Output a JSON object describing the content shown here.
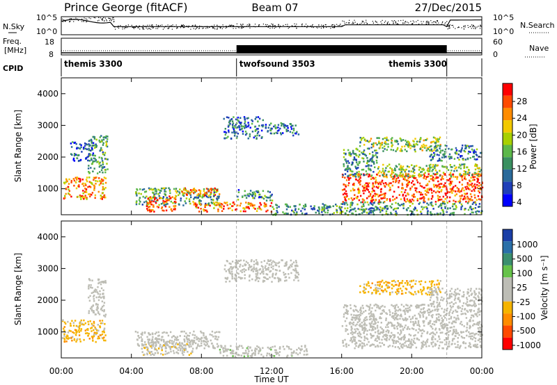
{
  "header": {
    "station": "Prince George (fitACF)",
    "beam": "Beam 07",
    "date": "27/Dec/2015"
  },
  "top_panels": {
    "noise": {
      "left_label": "N.Sky",
      "right_label": "N.Search",
      "left_ticks": [
        "10^5",
        "10^0"
      ],
      "right_ticks": [
        "10^5",
        "10^0"
      ]
    },
    "freq_nave": {
      "left_label_1": "Freq.",
      "left_label_2": "[MHz]",
      "right_label": "Nave",
      "left_ticks": [
        "18",
        "8"
      ],
      "right_ticks": [
        "60",
        "0"
      ]
    },
    "cpid": {
      "label": "CPID",
      "segments": [
        {
          "name": "themis 3300",
          "start_h": 0,
          "end_h": 10
        },
        {
          "name": "twofsound 3503",
          "start_h": 10,
          "end_h": 22
        },
        {
          "name": "themis 3300",
          "start_h": 22,
          "end_h": 24
        }
      ]
    }
  },
  "power_colorbar": {
    "label": "Power [dB]",
    "ticks": [
      "28",
      "24",
      "20",
      "16",
      "12",
      "8",
      "4"
    ],
    "colors": [
      "#ff0000",
      "#ff4a00",
      "#ff8c00",
      "#f2c900",
      "#a8d000",
      "#5cb84a",
      "#3a9060",
      "#2a6a9a",
      "#1f3fb8",
      "#0000ff"
    ]
  },
  "velocity_colorbar": {
    "label": "Velocity [m s⁻¹]",
    "ticks": [
      "1000",
      "500",
      "100",
      "25",
      "-25",
      "-100",
      "-500",
      "-1000"
    ],
    "colors": [
      "#1a3ea6",
      "#2a6fa8",
      "#3b8f6e",
      "#66c24a",
      "#bdbdb5",
      "#bdbdb5",
      "#f5b400",
      "#ff8c00",
      "#ff4a00",
      "#ff0000"
    ]
  },
  "chart_data": [
    {
      "type": "heatmap",
      "title": "Power [dB]",
      "ylabel": "Slant Range [km]",
      "xlabel": "Time UT",
      "x_ticks": [
        "00:00",
        "04:00",
        "08:00",
        "12:00",
        "16:00",
        "20:00",
        "00:00"
      ],
      "y_ticks": [
        1000,
        2000,
        3000,
        4000
      ],
      "xlim": [
        0,
        24
      ],
      "ylim": [
        180,
        4500
      ],
      "clim": [
        0,
        30
      ],
      "markers_h": [
        10,
        22
      ],
      "regions": [
        {
          "t0": 0.1,
          "t1": 2.5,
          "r0": 700,
          "r1": 1400,
          "v": 22
        },
        {
          "t0": 1.5,
          "t1": 2.6,
          "r0": 1500,
          "r1": 2700,
          "v": 12
        },
        {
          "t0": 0.5,
          "t1": 1.8,
          "r0": 1900,
          "r1": 2500,
          "v": 6
        },
        {
          "t0": 4.2,
          "t1": 9.0,
          "r0": 500,
          "r1": 1050,
          "v": 12
        },
        {
          "t0": 4.8,
          "t1": 6.5,
          "r0": 300,
          "r1": 800,
          "v": 26
        },
        {
          "t0": 6.5,
          "t1": 9.0,
          "r0": 800,
          "r1": 1050,
          "v": 22
        },
        {
          "t0": 7.5,
          "t1": 12.0,
          "r0": 300,
          "r1": 600,
          "v": 24
        },
        {
          "t0": 9.2,
          "t1": 11.5,
          "r0": 2600,
          "r1": 3300,
          "v": 8
        },
        {
          "t0": 11.5,
          "t1": 13.5,
          "r0": 2700,
          "r1": 3100,
          "v": 7
        },
        {
          "t0": 10.0,
          "t1": 12.0,
          "r0": 650,
          "r1": 1000,
          "v": 9
        },
        {
          "t0": 12.0,
          "t1": 16.0,
          "r0": 200,
          "r1": 550,
          "v": 10
        },
        {
          "t0": 16.0,
          "t1": 24.0,
          "r0": 600,
          "r1": 1500,
          "v": 26
        },
        {
          "t0": 16.0,
          "t1": 18.0,
          "r0": 1400,
          "r1": 2300,
          "v": 10
        },
        {
          "t0": 17.0,
          "t1": 21.6,
          "r0": 2200,
          "r1": 2650,
          "v": 15
        },
        {
          "t0": 18.0,
          "t1": 24.0,
          "r0": 1400,
          "r1": 1800,
          "v": 15
        },
        {
          "t0": 21.0,
          "t1": 24.0,
          "r0": 1900,
          "r1": 2400,
          "v": 9
        },
        {
          "t0": 16.0,
          "t1": 24.0,
          "r0": 200,
          "r1": 600,
          "v": 10
        }
      ]
    },
    {
      "type": "heatmap",
      "title": "Velocity [m s⁻¹]",
      "ylabel": "Slant Range [km]",
      "xlabel": "Time UT",
      "x_ticks": [
        "00:00",
        "04:00",
        "08:00",
        "12:00",
        "16:00",
        "20:00",
        "00:00"
      ],
      "y_ticks": [
        1000,
        2000,
        3000,
        4000
      ],
      "xlim": [
        0,
        24
      ],
      "ylim": [
        180,
        4500
      ],
      "clim": [
        -1000,
        1000
      ],
      "markers_h": [
        10,
        22
      ],
      "regions": [
        {
          "t0": 0.0,
          "t1": 2.5,
          "r0": 700,
          "r1": 1400,
          "v": -300
        },
        {
          "t0": 1.5,
          "t1": 2.5,
          "r0": 1500,
          "r1": 2700,
          "v": 0
        },
        {
          "t0": 4.2,
          "t1": 9.0,
          "r0": 500,
          "r1": 1050,
          "v": 0
        },
        {
          "t0": 4.5,
          "t1": 7.5,
          "r0": 300,
          "r1": 800,
          "v": -90
        },
        {
          "t0": 9.2,
          "t1": 13.5,
          "r0": 2600,
          "r1": 3300,
          "v": 0
        },
        {
          "t0": 9.0,
          "t1": 14.0,
          "r0": 250,
          "r1": 600,
          "v": 80
        },
        {
          "t0": 16.0,
          "t1": 24.0,
          "r0": 500,
          "r1": 1900,
          "v": 0
        },
        {
          "t0": 17.0,
          "t1": 21.6,
          "r0": 2200,
          "r1": 2650,
          "v": -300
        },
        {
          "t0": 21.0,
          "t1": 24.0,
          "r0": 1900,
          "r1": 2400,
          "v": 0
        }
      ]
    }
  ]
}
